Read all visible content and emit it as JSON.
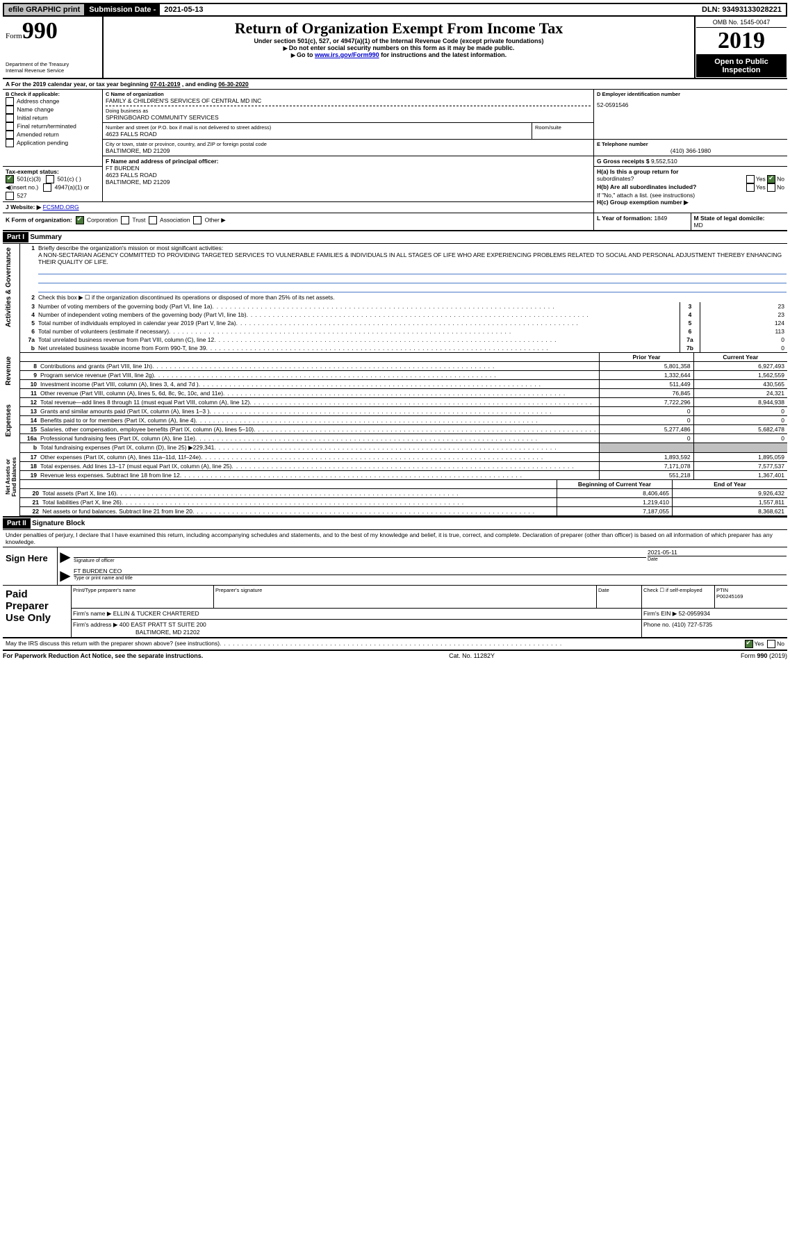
{
  "top": {
    "efile": "efile GRAPHIC print",
    "subDateLabel": "Submission Date - ",
    "subDate": "2021-05-13",
    "dlnLabel": "DLN: ",
    "dln": "93493133028221"
  },
  "header": {
    "formWord": "Form",
    "formNum": "990",
    "dept": "Department of the Treasury\nInternal Revenue Service",
    "title": "Return of Organization Exempt From Income Tax",
    "sub1": "Under section 501(c), 527, or 4947(a)(1) of the Internal Revenue Code (except private foundations)",
    "sub2": "Do not enter social security numbers on this form as it may be made public.",
    "sub3a": "Go to ",
    "sub3link": "www.irs.gov/Form990",
    "sub3b": " for instructions and the latest information.",
    "omb": "OMB No. 1545-0047",
    "year": "2019",
    "open1": "Open to Public",
    "open2": "Inspection"
  },
  "periodA": {
    "a": "A For the 2019 calendar year, or tax year beginning ",
    "begin": "07-01-2019",
    "mid": " , and ending ",
    "end": "06-30-2020"
  },
  "boxB": {
    "label": "B Check if applicable:",
    "opts": [
      "Address change",
      "Name change",
      "Initial return",
      "Final return/terminated",
      "Amended return",
      "Application pending"
    ]
  },
  "boxC": {
    "nameLabel": "C Name of organization",
    "name": "FAMILY & CHILDREN'S SERVICES OF CENTRAL MD INC",
    "dbaLabel": "Doing business as",
    "dba": "SPRINGBOARD COMMUNITY SERVICES",
    "addrLabel": "Number and street (or P.O. box if mail is not delivered to street address)",
    "room": "Room/suite",
    "addr": "4623 FALLS ROAD",
    "cityLabel": "City or town, state or province, country, and ZIP or foreign postal code",
    "city": "BALTIMORE, MD  21209"
  },
  "boxD": {
    "label": "D Employer identification number",
    "val": "52-0591546"
  },
  "boxE": {
    "label": "E Telephone number",
    "val": "(410) 366-1980"
  },
  "boxG": {
    "label": "G Gross receipts $ ",
    "val": "9,552,510"
  },
  "boxF": {
    "label": "F  Name and address of principal officer:",
    "name": "FT BURDEN",
    "addr1": "4623 FALLS ROAD",
    "addr2": "BALTIMORE, MD  21209"
  },
  "boxH": {
    "ha": "H(a)  Is this a group return for",
    "ha2": "subordinates?",
    "hb": "H(b)  Are all subordinates included?",
    "note": "If \"No,\" attach a list. (see instructions)",
    "hc": "H(c)  Group exemption number ▶",
    "yes": "Yes",
    "no": "No"
  },
  "boxI": {
    "label": "Tax-exempt status:",
    "o1": "501(c)(3)",
    "o2": "501(c) (  ) ◀(insert no.)",
    "o3": "4947(a)(1) or",
    "o4": "527"
  },
  "boxJ": {
    "label": "J   Website: ▶",
    "val": " FCSMD.ORG"
  },
  "boxK": {
    "label": "K Form of organization:",
    "o1": "Corporation",
    "o2": "Trust",
    "o3": "Association",
    "o4": "Other ▶"
  },
  "boxL": {
    "label": "L Year of formation: ",
    "val": "1849"
  },
  "boxM": {
    "label": "M State of legal domicile:",
    "val": "MD"
  },
  "part1": {
    "hdr": "Part I",
    "title": "Summary",
    "l1": "Briefly describe the organization's mission or most significant activities:",
    "mission": "A NON-SECTARIAN AGENCY COMMITTED TO PROVIDING TARGETED SERVICES TO VULNERABLE FAMILIES & INDIVIDUALS IN ALL STAGES OF LIFE WHO ARE EXPERIENCING PROBLEMS RELATED TO SOCIAL AND PERSONAL ADJUSTMENT THEREBY ENHANCING THEIR QUALITY OF LIFE.",
    "l2": "Check this box ▶ ☐  if the organization discontinued its operations or disposed of more than 25% of its net assets.",
    "l3": "Number of voting members of the governing body (Part VI, line 1a)",
    "l4": "Number of independent voting members of the governing body (Part VI, line 1b)",
    "l5": "Total number of individuals employed in calendar year 2019 (Part V, line 2a)",
    "l6": "Total number of volunteers (estimate if necessary)",
    "l7a": "Total unrelated business revenue from Part VIII, column (C), line 12",
    "l7b": "Net unrelated business taxable income from Form 990-T, line 39",
    "v3": "23",
    "v4": "23",
    "v5": "124",
    "v6": "113",
    "v7a": "0",
    "v7b": "0",
    "priorHdr": "Prior Year",
    "curHdr": "Current Year",
    "rows": [
      {
        "n": "8",
        "t": "Contributions and grants (Part VIII, line 1h)",
        "p": "5,801,358",
        "c": "6,927,493"
      },
      {
        "n": "9",
        "t": "Program service revenue (Part VIII, line 2g)",
        "p": "1,332,644",
        "c": "1,562,559"
      },
      {
        "n": "10",
        "t": "Investment income (Part VIII, column (A), lines 3, 4, and 7d )",
        "p": "511,449",
        "c": "430,565"
      },
      {
        "n": "11",
        "t": "Other revenue (Part VIII, column (A), lines 5, 6d, 8c, 9c, 10c, and 11e)",
        "p": "76,845",
        "c": "24,321"
      },
      {
        "n": "12",
        "t": "Total revenue—add lines 8 through 11 (must equal Part VIII, column (A), line 12)",
        "p": "7,722,296",
        "c": "8,944,938"
      },
      {
        "n": "13",
        "t": "Grants and similar amounts paid (Part IX, column (A), lines 1–3 )",
        "p": "0",
        "c": "0"
      },
      {
        "n": "14",
        "t": "Benefits paid to or for members (Part IX, column (A), line 4)",
        "p": "0",
        "c": "0"
      },
      {
        "n": "15",
        "t": "Salaries, other compensation, employee benefits (Part IX, column (A), lines 5–10)",
        "p": "5,277,486",
        "c": "5,682,478"
      },
      {
        "n": "16a",
        "t": "Professional fundraising fees (Part IX, column (A), line 11e)",
        "p": "0",
        "c": "0"
      },
      {
        "n": "b",
        "t": "Total fundraising expenses (Part IX, column (D), line 25) ▶229,341",
        "p": "",
        "c": "",
        "grey": true
      },
      {
        "n": "17",
        "t": "Other expenses (Part IX, column (A), lines 11a–11d, 11f–24e)",
        "p": "1,893,592",
        "c": "1,895,059"
      },
      {
        "n": "18",
        "t": "Total expenses. Add lines 13–17 (must equal Part IX, column (A), line 25)",
        "p": "7,171,078",
        "c": "7,577,537"
      },
      {
        "n": "19",
        "t": "Revenue less expenses. Subtract line 18 from line 12",
        "p": "551,218",
        "c": "1,367,401"
      }
    ],
    "begHdr": "Beginning of Current Year",
    "endHdr": "End of Year",
    "netrows": [
      {
        "n": "20",
        "t": "Total assets (Part X, line 16)",
        "p": "8,406,465",
        "c": "9,926,432"
      },
      {
        "n": "21",
        "t": "Total liabilities (Part X, line 26)",
        "p": "1,219,410",
        "c": "1,557,811"
      },
      {
        "n": "22",
        "t": "Net assets or fund balances. Subtract line 21 from line 20",
        "p": "7,187,055",
        "c": "8,368,621"
      }
    ],
    "sideLabels": [
      "Activities & Governance",
      "Revenue",
      "Expenses",
      "Net Assets or\nFund Balances"
    ]
  },
  "part2": {
    "hdr": "Part II",
    "title": "Signature Block",
    "decl": "Under penalties of perjury, I declare that I have examined this return, including accompanying schedules and statements, and to the best of my knowledge and belief, it is true, correct, and complete. Declaration of preparer (other than officer) is based on all information of which preparer has any knowledge.",
    "signHere": "Sign Here",
    "sigOff": "Signature of officer",
    "date": "Date",
    "dateVal": "2021-05-11",
    "nameTitle": "FT BURDEN CEO",
    "nameTitleLabel": "Type or print name and title",
    "paid": "Paid Preparer Use Only",
    "prepName": "Print/Type preparer's name",
    "prepSig": "Preparer's signature",
    "prepDate": "Date",
    "check": "Check ☐ if self-employed",
    "ptin": "PTIN",
    "ptinVal": "P00245169",
    "firmName": "Firm's name   ▶",
    "firmNameVal": "ELLIN & TUCKER CHARTERED",
    "firmEin": "Firm's EIN ▶ ",
    "firmEinVal": "52-0959934",
    "firmAddr": "Firm's address ▶",
    "firmAddrVal": "400 EAST PRATT ST SUITE 200",
    "firmCity": "BALTIMORE, MD  21202",
    "phone": "Phone no. ",
    "phoneVal": "(410) 727-5735",
    "discuss": "May the IRS discuss this return with the preparer shown above? (see instructions)",
    "yes": "Yes",
    "no": "No"
  },
  "footer": {
    "pra": "For Paperwork Reduction Act Notice, see the separate instructions.",
    "cat": "Cat. No. 11282Y",
    "form": "Form 990 (2019)"
  }
}
